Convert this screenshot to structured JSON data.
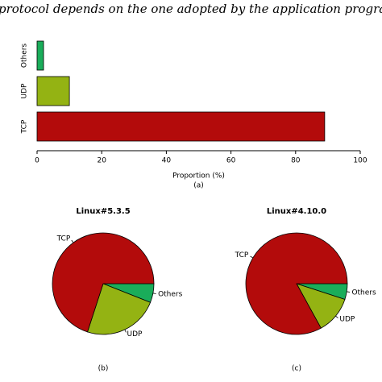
{
  "caption": "protocol depends on the one adopted by the application programmers.",
  "chart_data": [
    {
      "type": "barh",
      "categories": [
        "TCP",
        "UDP",
        "Others"
      ],
      "values": [
        89,
        10,
        2
      ],
      "colors": [
        "#b30b0b",
        "#94b313",
        "#1aad5a"
      ],
      "xlim": [
        0,
        100
      ],
      "xticks": [
        0,
        20,
        40,
        60,
        80,
        100
      ],
      "xlabel": "Proportion (%)",
      "sublabel": "(a)"
    },
    {
      "type": "pie",
      "title": "Linux#5.3.5",
      "categories": [
        "TCP",
        "UDP",
        "Others"
      ],
      "values": [
        70,
        24,
        6
      ],
      "colors": [
        "#b30b0b",
        "#94b313",
        "#1aad5a"
      ],
      "sublabel": "(b)"
    },
    {
      "type": "pie",
      "title": "Linux#4.10.0",
      "categories": [
        "TCP",
        "UDP",
        "Others"
      ],
      "values": [
        83,
        12,
        5
      ],
      "colors": [
        "#b30b0b",
        "#94b313",
        "#1aad5a"
      ],
      "sublabel": "(c)"
    }
  ]
}
